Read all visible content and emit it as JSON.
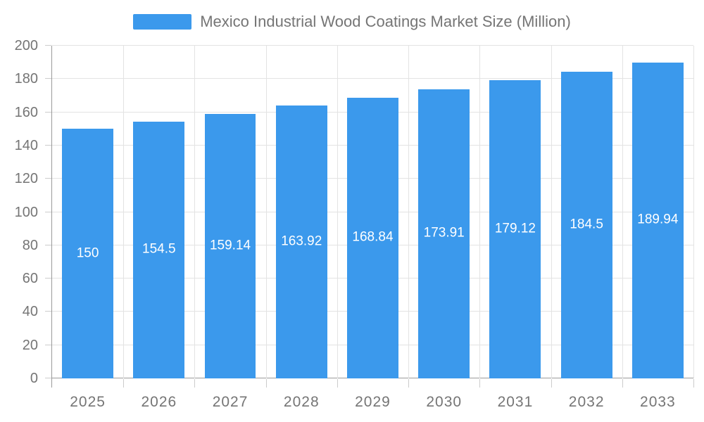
{
  "chart_data": {
    "type": "bar",
    "title": "Mexico Industrial Wood Coatings Market Size (Million)",
    "xlabel": "",
    "ylabel": "",
    "categories": [
      "2025",
      "2026",
      "2027",
      "2028",
      "2029",
      "2030",
      "2031",
      "2032",
      "2033"
    ],
    "values": [
      150,
      154.5,
      159.14,
      163.92,
      168.84,
      173.91,
      179.12,
      184.5,
      189.94
    ],
    "value_labels": [
      "150",
      "154.5",
      "159.14",
      "163.92",
      "168.84",
      "173.91",
      "179.12",
      "184.5",
      "189.94"
    ],
    "ylim": [
      0,
      200
    ],
    "yticks": [
      0,
      20,
      40,
      60,
      80,
      100,
      120,
      140,
      160,
      180,
      200
    ],
    "grid": true,
    "legend_position": "top-center",
    "colors": {
      "bar": "#3b99ec",
      "bar_label": "#ffffff",
      "axis_line": "#9a9a9a",
      "gridline": "#e3e3e3",
      "tick": "#cccccc",
      "text": "#757575",
      "background": "#ffffff"
    }
  }
}
